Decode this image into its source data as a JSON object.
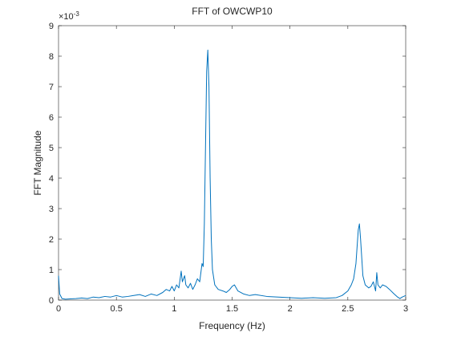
{
  "chart_data": {
    "type": "line",
    "title": "FFT of OWCWP10",
    "x_label": "Frequency (Hz)",
    "y_label": "FFT Magnitude",
    "y_multiplier": "×10",
    "y_exponent": "-3",
    "xlim": [
      0,
      3
    ],
    "xticks": [
      0,
      0.5,
      1,
      1.5,
      2,
      2.5,
      3
    ],
    "ylim": [
      0,
      9
    ],
    "yticks": [
      0,
      1,
      2,
      3,
      4,
      5,
      6,
      7,
      8,
      9
    ],
    "grid": false,
    "series": [
      {
        "color": "#0072bd",
        "x": [
          0,
          0.01,
          0.03,
          0.06,
          0.1,
          0.15,
          0.2,
          0.25,
          0.3,
          0.35,
          0.4,
          0.45,
          0.5,
          0.55,
          0.6,
          0.65,
          0.7,
          0.75,
          0.8,
          0.85,
          0.9,
          0.93,
          0.96,
          0.98,
          1.0,
          1.02,
          1.04,
          1.06,
          1.07,
          1.09,
          1.1,
          1.12,
          1.14,
          1.16,
          1.18,
          1.2,
          1.22,
          1.24,
          1.25,
          1.26,
          1.27,
          1.28,
          1.29,
          1.3,
          1.31,
          1.32,
          1.33,
          1.35,
          1.38,
          1.42,
          1.45,
          1.48,
          1.5,
          1.52,
          1.55,
          1.6,
          1.65,
          1.7,
          1.8,
          1.9,
          2.0,
          2.1,
          2.2,
          2.3,
          2.4,
          2.45,
          2.5,
          2.53,
          2.55,
          2.57,
          2.59,
          2.6,
          2.61,
          2.63,
          2.65,
          2.68,
          2.7,
          2.72,
          2.74,
          2.75,
          2.76,
          2.78,
          2.8,
          2.83,
          2.86,
          2.9,
          2.93,
          2.95,
          2.97,
          3.0
        ],
        "values": [
          0.8,
          0.2,
          0.05,
          0.03,
          0.04,
          0.05,
          0.07,
          0.05,
          0.1,
          0.08,
          0.12,
          0.1,
          0.15,
          0.1,
          0.12,
          0.15,
          0.18,
          0.12,
          0.2,
          0.15,
          0.25,
          0.35,
          0.3,
          0.45,
          0.3,
          0.5,
          0.4,
          0.95,
          0.6,
          0.8,
          0.5,
          0.4,
          0.55,
          0.35,
          0.5,
          0.7,
          0.6,
          1.2,
          1.1,
          2.5,
          5.0,
          7.5,
          8.2,
          7.0,
          4.0,
          2.0,
          1.0,
          0.5,
          0.35,
          0.3,
          0.25,
          0.35,
          0.45,
          0.5,
          0.3,
          0.2,
          0.15,
          0.18,
          0.12,
          0.1,
          0.08,
          0.06,
          0.08,
          0.06,
          0.08,
          0.15,
          0.3,
          0.5,
          0.7,
          1.2,
          2.3,
          2.5,
          2.0,
          0.8,
          0.5,
          0.4,
          0.45,
          0.6,
          0.3,
          0.9,
          0.5,
          0.4,
          0.5,
          0.45,
          0.35,
          0.2,
          0.1,
          0.05,
          0.1,
          0.15
        ]
      }
    ]
  }
}
